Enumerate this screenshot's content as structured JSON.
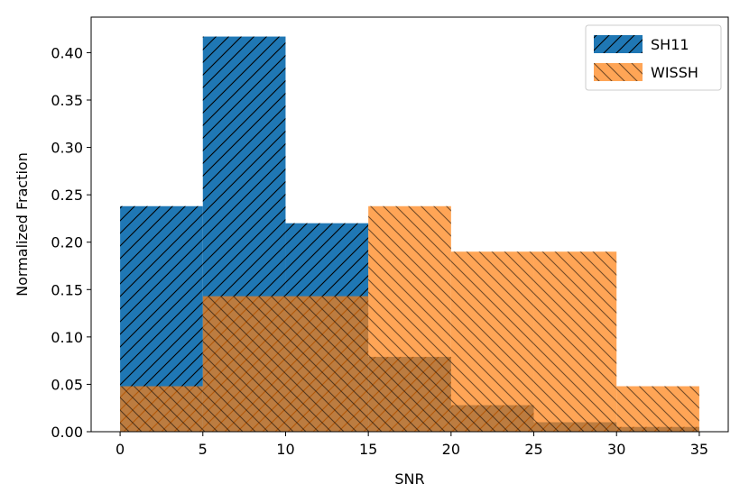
{
  "chart_data": {
    "type": "bar",
    "subtype": "overlapping-histogram",
    "bin_edges": [
      0,
      5,
      10,
      15,
      20,
      25,
      30,
      35
    ],
    "series": [
      {
        "name": "SH11",
        "color": "#1f77b4",
        "hatch": "forward-diagonal",
        "values": [
          0.238,
          0.417,
          0.22,
          0.079,
          0.028,
          0.01,
          0.005
        ]
      },
      {
        "name": "WISSH",
        "color": "#ff7f0e",
        "hatch": "back-diagonal",
        "values": [
          0.048,
          0.143,
          0.143,
          0.238,
          0.19,
          0.19,
          0.048
        ]
      }
    ],
    "series_alpha": [
      1.0,
      0.7
    ],
    "xlabel": "SNR",
    "ylabel": "Normalized Fraction",
    "xlim": [
      -1.75,
      36.75
    ],
    "ylim": [
      0,
      0.4375
    ],
    "xticks": [
      0,
      5,
      10,
      15,
      20,
      25,
      30,
      35
    ],
    "yticks": [
      0.0,
      0.05,
      0.1,
      0.15,
      0.2,
      0.25,
      0.3,
      0.35,
      0.4
    ],
    "ytick_labels": [
      "0.00",
      "0.05",
      "0.10",
      "0.15",
      "0.20",
      "0.25",
      "0.30",
      "0.35",
      "0.40"
    ],
    "xtick_labels": [
      "0",
      "5",
      "10",
      "15",
      "20",
      "25",
      "30",
      "35"
    ],
    "legend_position": "top-right",
    "grid": false
  }
}
